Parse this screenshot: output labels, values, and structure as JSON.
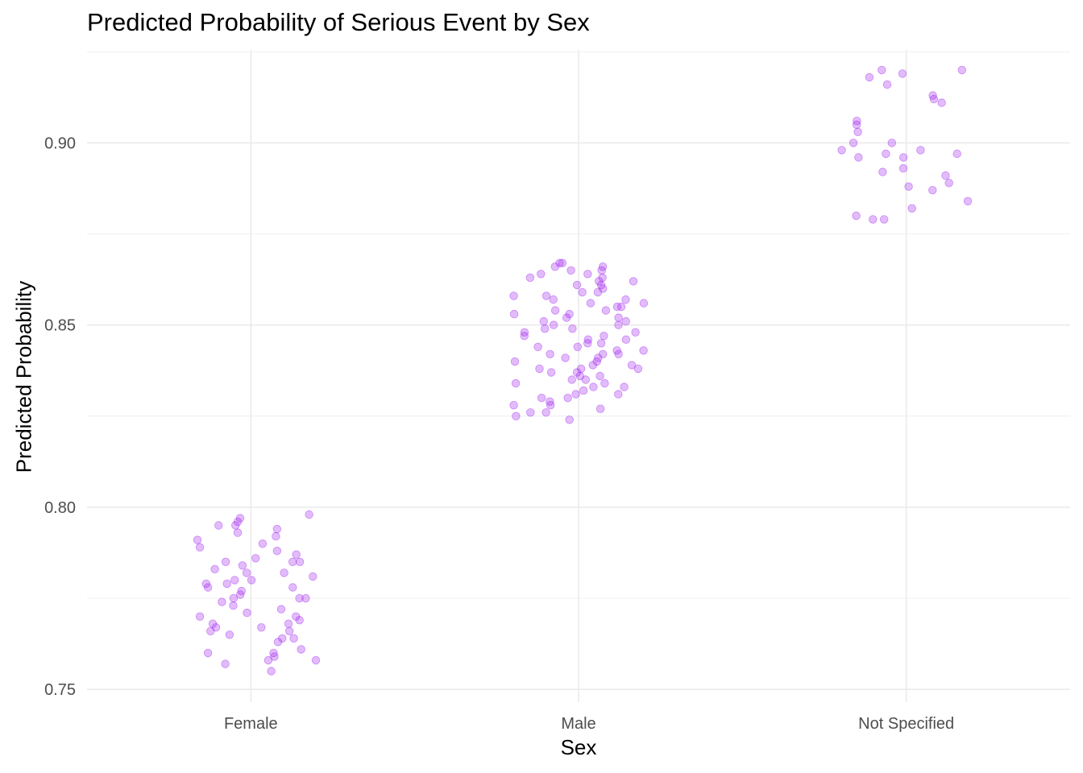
{
  "chart_data": {
    "type": "scatter",
    "title": "Predicted Probability of Serious Event by Sex",
    "xlabel": "Sex",
    "ylabel": "Predicted Probability",
    "categories": [
      "Female",
      "Male",
      "Not Specified"
    ],
    "ylim": [
      0.7465,
      0.9255
    ],
    "yticks": [
      "0.75",
      "0.80",
      "0.85",
      "0.90"
    ],
    "grid": true,
    "jitter": true,
    "point_color": "#A020F0",
    "point_opacity": 0.3,
    "series": [
      {
        "category": "Female",
        "values": [
          0.755,
          0.757,
          0.758,
          0.758,
          0.759,
          0.76,
          0.76,
          0.761,
          0.763,
          0.764,
          0.764,
          0.765,
          0.766,
          0.766,
          0.767,
          0.767,
          0.768,
          0.768,
          0.769,
          0.77,
          0.77,
          0.771,
          0.772,
          0.773,
          0.774,
          0.775,
          0.775,
          0.775,
          0.776,
          0.777,
          0.778,
          0.778,
          0.779,
          0.779,
          0.78,
          0.78,
          0.781,
          0.782,
          0.782,
          0.783,
          0.784,
          0.785,
          0.785,
          0.785,
          0.786,
          0.787,
          0.788,
          0.789,
          0.79,
          0.791,
          0.792,
          0.793,
          0.794,
          0.795,
          0.795,
          0.796,
          0.797,
          0.798
        ]
      },
      {
        "category": "Male",
        "values": [
          0.824,
          0.825,
          0.826,
          0.826,
          0.827,
          0.828,
          0.828,
          0.829,
          0.83,
          0.83,
          0.831,
          0.831,
          0.832,
          0.833,
          0.833,
          0.834,
          0.834,
          0.835,
          0.835,
          0.836,
          0.836,
          0.837,
          0.837,
          0.838,
          0.838,
          0.838,
          0.839,
          0.839,
          0.84,
          0.84,
          0.841,
          0.841,
          0.842,
          0.842,
          0.842,
          0.843,
          0.843,
          0.844,
          0.844,
          0.845,
          0.845,
          0.846,
          0.846,
          0.847,
          0.847,
          0.848,
          0.848,
          0.849,
          0.849,
          0.85,
          0.85,
          0.851,
          0.851,
          0.852,
          0.852,
          0.853,
          0.853,
          0.854,
          0.854,
          0.855,
          0.855,
          0.856,
          0.856,
          0.857,
          0.857,
          0.858,
          0.858,
          0.859,
          0.859,
          0.86,
          0.861,
          0.861,
          0.862,
          0.862,
          0.863,
          0.863,
          0.864,
          0.864,
          0.865,
          0.865,
          0.866,
          0.866,
          0.867,
          0.867
        ]
      },
      {
        "category": "Not Specified",
        "values": [
          0.879,
          0.879,
          0.88,
          0.882,
          0.884,
          0.887,
          0.888,
          0.889,
          0.891,
          0.892,
          0.893,
          0.896,
          0.896,
          0.897,
          0.897,
          0.898,
          0.898,
          0.9,
          0.9,
          0.903,
          0.905,
          0.906,
          0.911,
          0.912,
          0.913,
          0.916,
          0.918,
          0.919,
          0.92,
          0.92
        ]
      }
    ]
  }
}
